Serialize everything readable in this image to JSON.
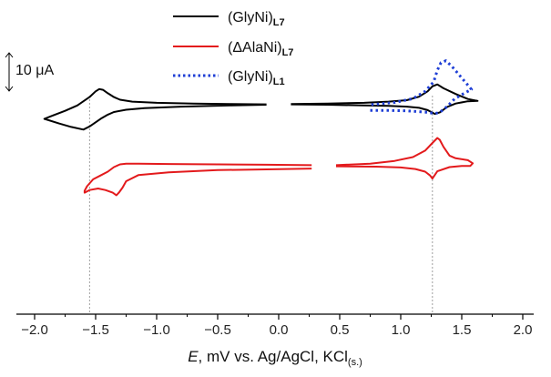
{
  "chart_data": {
    "type": "line",
    "title": "",
    "xlabel": "E, mV vs. Ag/AgCl, KCl(s.)",
    "xlabel_parts": {
      "italic": "E",
      "rest": ", mV vs. Ag/AgCl, KCl",
      "subscript": "(s.)"
    },
    "ylabel": "",
    "xlim": [
      -2.0,
      2.0
    ],
    "x_ticks": [
      "-2.0",
      "-1.5",
      "-1.0",
      "-0.5",
      "0.0",
      "0.5",
      "1.0",
      "1.5",
      "2.0"
    ],
    "scale_bar": {
      "label": "10 μA",
      "value_uA": 10
    },
    "reference_lines_x": [
      -1.55,
      1.26
    ],
    "legend": [
      {
        "base": "(GlyNi)",
        "sub": "L7"
      },
      {
        "base": "(ΔAlaNi)",
        "sub": "L7"
      },
      {
        "base": "(GlyNi)",
        "sub": "L1"
      }
    ],
    "series": [
      {
        "name": "(GlyNi)L7",
        "color": "#000000",
        "style": "solid",
        "offset_uA": 0,
        "segments": [
          {
            "x": [
              -0.1,
              -0.4,
              -0.8,
              -1.1,
              -1.25,
              -1.35,
              -1.4,
              -1.45,
              -1.5,
              -1.55,
              -1.6,
              -1.7,
              -1.8,
              -1.92,
              -1.85,
              -1.75,
              -1.65,
              -1.55,
              -1.5,
              -1.47,
              -1.44,
              -1.4,
              -1.35,
              -1.3,
              -1.2,
              -1.0,
              -0.7,
              -0.4,
              -0.1
            ],
            "y": [
              0.0,
              -0.2,
              -0.5,
              -0.9,
              -1.3,
              -1.9,
              -2.6,
              -3.5,
              -4.6,
              -5.7,
              -6.5,
              -5.8,
              -4.9,
              -3.7,
              -2.8,
              -1.6,
              -0.2,
              2.0,
              3.5,
              4.1,
              3.9,
              3.0,
              2.0,
              1.3,
              0.8,
              0.5,
              0.3,
              0.2,
              0.1
            ]
          },
          {
            "x": [
              0.1,
              0.4,
              0.7,
              0.9,
              1.05,
              1.15,
              1.22,
              1.28,
              1.32,
              1.38,
              1.45,
              1.55,
              1.63,
              1.55,
              1.45,
              1.35,
              1.3,
              1.26,
              1.22,
              1.15,
              1.05,
              0.9,
              0.7,
              0.4,
              0.1
            ],
            "y": [
              0.1,
              0.0,
              -0.2,
              -0.3,
              -0.5,
              -0.8,
              -1.4,
              -2.4,
              -2.0,
              -0.6,
              0.3,
              0.9,
              1.0,
              1.5,
              2.8,
              4.3,
              5.3,
              4.8,
              3.5,
              2.1,
              1.2,
              0.8,
              0.5,
              0.3,
              0.2
            ]
          }
        ]
      },
      {
        "name": "(ΔAlaNi)L7",
        "color": "#e31a1c",
        "style": "solid",
        "offset_uA": -16.5,
        "segments": [
          {
            "x": [
              0.27,
              -0.1,
              -0.5,
              -0.9,
              -1.15,
              -1.25,
              -1.28,
              -1.31,
              -1.33,
              -1.36,
              -1.42,
              -1.48,
              -1.55,
              -1.59,
              -1.59,
              -1.57,
              -1.52,
              -1.46,
              -1.4,
              -1.35,
              -1.3,
              -1.25,
              -1.15,
              -0.9,
              -0.5,
              -0.1,
              0.27
            ],
            "y": [
              -0.2,
              -0.4,
              -0.6,
              -1.2,
              -1.9,
              -3.5,
              -5.2,
              -6.5,
              -7.2,
              -6.5,
              -5.8,
              -5.4,
              -5.8,
              -6.5,
              -6.0,
              -4.8,
              -3.0,
              -2.0,
              -1.0,
              0.2,
              0.9,
              1.1,
              1.1,
              1.0,
              0.9,
              0.8,
              0.7
            ]
          },
          {
            "x": [
              0.47,
              0.8,
              1.0,
              1.12,
              1.2,
              1.24,
              1.26,
              1.3,
              1.4,
              1.5,
              1.57,
              1.59,
              1.55,
              1.45,
              1.4,
              1.35,
              1.32,
              1.3,
              1.26,
              1.2,
              1.1,
              0.95,
              0.75,
              0.47
            ],
            "y": [
              0.4,
              0.3,
              0.1,
              -0.3,
              -1.0,
              -2.0,
              -2.8,
              -0.9,
              0.2,
              0.5,
              0.5,
              1.2,
              2.0,
              2.5,
              3.2,
              5.5,
              7.3,
              7.8,
              6.5,
              4.5,
              2.8,
              1.8,
              1.1,
              0.7
            ]
          }
        ]
      },
      {
        "name": "(GlyNi)L1",
        "color": "#1f3fd6",
        "style": "dotted",
        "offset_uA": 0,
        "segments": [
          {
            "x": [
              0.75,
              0.9,
              1.05,
              1.15,
              1.22,
              1.28,
              1.32,
              1.38,
              1.44,
              1.52,
              1.58,
              1.5,
              1.42,
              1.37,
              1.33,
              1.3,
              1.27,
              1.2,
              1.1,
              0.95,
              0.75
            ],
            "y": [
              -1.5,
              -1.5,
              -1.6,
              -1.8,
              -2.0,
              -2.3,
              -2.0,
              -0.5,
              1.5,
              3.0,
              4.0,
              7.0,
              10.0,
              11.5,
              11.0,
              9.0,
              6.0,
              3.5,
              1.6,
              0.6,
              0.0
            ]
          }
        ]
      }
    ]
  }
}
